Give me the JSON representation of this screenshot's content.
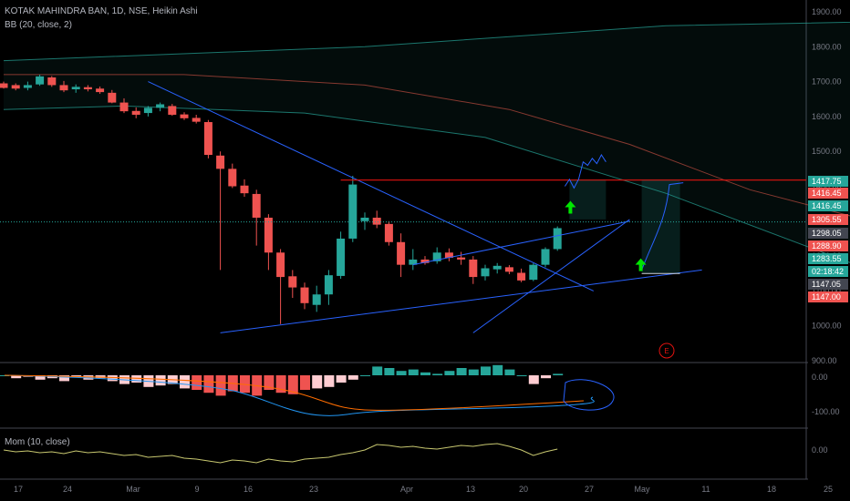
{
  "header": {
    "symbol_line": "KOTAK MAHINDRA BAN, 1D, NSE, Heikin Ashi",
    "bb_line": "BB (20, close, 2)"
  },
  "mom_panel": {
    "label": "Mom (10, close)"
  },
  "colors": {
    "background": "#000000",
    "up": "#26a69a",
    "down": "#ef5350",
    "trendline": "#2962ff",
    "resistance": "#e3130f",
    "bb_band": "#26a69a",
    "ma": "#e0584a",
    "macd_line": "#2196f3",
    "signal_line": "#ff6d00",
    "momentum": "#c8c870",
    "signal_arrow": "#00e600"
  },
  "chart_data": {
    "type": "candlestick",
    "ylim": [
      900,
      1900
    ],
    "y_ticks": [
      "1900.00",
      "1800.00",
      "1700.00",
      "1600.00",
      "1500.00",
      "1400.00",
      "1300.00",
      "1200.00",
      "1100.00",
      "1000.00",
      "900.00"
    ],
    "x_ticks": [
      "17",
      "24",
      "Mar",
      "9",
      "16",
      "23",
      "Apr",
      "13",
      "20",
      "27",
      "May",
      "11",
      "18",
      "25"
    ],
    "price_labels": [
      {
        "text": "1417.75",
        "color": "#26a69a"
      },
      {
        "text": "1416.45",
        "color": "#ef5350"
      },
      {
        "text": "1416.45",
        "color": "#26a69a"
      },
      {
        "text": "1305.55",
        "color": "#ef5350"
      },
      {
        "text": "1298.05",
        "color": "#434651"
      },
      {
        "text": "1288.90",
        "color": "#ef5350"
      },
      {
        "text": "1283.55",
        "color": "#26a69a"
      },
      {
        "text": "02:18:42",
        "color": "#26a69a"
      },
      {
        "text": "1147.05",
        "color": "#434651"
      },
      {
        "text": "1147.00",
        "color": "#ef5350"
      }
    ],
    "candles": [
      [
        1695,
        1700,
        1680,
        1682
      ],
      [
        1690,
        1695,
        1675,
        1680
      ],
      [
        1682,
        1700,
        1675,
        1690
      ],
      [
        1692,
        1720,
        1688,
        1715
      ],
      [
        1712,
        1716,
        1685,
        1690
      ],
      [
        1690,
        1702,
        1670,
        1675
      ],
      [
        1678,
        1692,
        1668,
        1685
      ],
      [
        1684,
        1690,
        1672,
        1678
      ],
      [
        1680,
        1686,
        1665,
        1670
      ],
      [
        1668,
        1676,
        1638,
        1640
      ],
      [
        1640,
        1652,
        1610,
        1615
      ],
      [
        1616,
        1626,
        1595,
        1605
      ],
      [
        1610,
        1630,
        1600,
        1625
      ],
      [
        1625,
        1640,
        1615,
        1635
      ],
      [
        1630,
        1636,
        1602,
        1605
      ],
      [
        1606,
        1612,
        1590,
        1595
      ],
      [
        1596,
        1605,
        1580,
        1585
      ],
      [
        1584,
        1590,
        1480,
        1490
      ],
      [
        1488,
        1500,
        1160,
        1450
      ],
      [
        1450,
        1465,
        1395,
        1400
      ],
      [
        1402,
        1420,
        1370,
        1380
      ],
      [
        1378,
        1390,
        1230,
        1310
      ],
      [
        1310,
        1320,
        1160,
        1210
      ],
      [
        1210,
        1220,
        1005,
        1140
      ],
      [
        1142,
        1160,
        1080,
        1110
      ],
      [
        1110,
        1124,
        1048,
        1065
      ],
      [
        1060,
        1115,
        1040,
        1090
      ],
      [
        1090,
        1160,
        1060,
        1145
      ],
      [
        1143,
        1270,
        1135,
        1250
      ],
      [
        1250,
        1430,
        1240,
        1405
      ],
      [
        1300,
        1325,
        1275,
        1310
      ],
      [
        1310,
        1330,
        1280,
        1290
      ],
      [
        1292,
        1300,
        1230,
        1240
      ],
      [
        1240,
        1265,
        1140,
        1175
      ],
      [
        1175,
        1220,
        1160,
        1190
      ],
      [
        1190,
        1200,
        1175,
        1180
      ],
      [
        1185,
        1225,
        1178,
        1210
      ],
      [
        1210,
        1222,
        1185,
        1195
      ],
      [
        1196,
        1212,
        1175,
        1190
      ],
      [
        1190,
        1200,
        1120,
        1140
      ],
      [
        1142,
        1175,
        1130,
        1165
      ],
      [
        1162,
        1180,
        1150,
        1172
      ],
      [
        1168,
        1174,
        1148,
        1155
      ],
      [
        1152,
        1164,
        1125,
        1130
      ],
      [
        1132,
        1180,
        1128,
        1175
      ],
      [
        1175,
        1225,
        1168,
        1220
      ],
      [
        1220,
        1285,
        1215,
        1280
      ]
    ],
    "bb_upper": [
      [
        0,
        1760
      ],
      [
        30,
        1800
      ],
      [
        55,
        1860
      ],
      [
        85,
        1880
      ],
      [
        100,
        1840
      ],
      [
        115,
        1770
      ],
      [
        125,
        1680
      ],
      [
        140,
        1580
      ],
      [
        162,
        1545
      ],
      [
        175,
        1535
      ],
      [
        220,
        1532
      ]
    ],
    "bb_lower": [
      [
        0,
        1620
      ],
      [
        10,
        1630
      ],
      [
        25,
        1610
      ],
      [
        40,
        1540
      ],
      [
        55,
        1380
      ],
      [
        75,
        1120
      ],
      [
        95,
        1050
      ],
      [
        105,
        1048
      ],
      [
        115,
        1035
      ],
      [
        125,
        1045
      ],
      [
        135,
        1075
      ],
      [
        145,
        1105
      ],
      [
        160,
        1140
      ],
      [
        175,
        1150
      ],
      [
        200,
        1160
      ],
      [
        220,
        1165
      ]
    ],
    "bb_basis": [
      [
        0,
        1720
      ],
      [
        15,
        1720
      ],
      [
        30,
        1690
      ],
      [
        42,
        1620
      ],
      [
        52,
        1520
      ],
      [
        62,
        1390
      ],
      [
        72,
        1300
      ],
      [
        85,
        1290
      ],
      [
        95,
        1280
      ],
      [
        110,
        1250
      ],
      [
        120,
        1230
      ],
      [
        135,
        1225
      ],
      [
        150,
        1225
      ],
      [
        170,
        1230
      ],
      [
        195,
        1240
      ]
    ],
    "resistance_level": 1417.75,
    "projection_path": [
      [
        -1,
        1400
      ],
      [
        0,
        1420
      ],
      [
        1,
        1395
      ],
      [
        2,
        1420
      ],
      [
        3,
        1470
      ],
      [
        4,
        1460
      ],
      [
        5,
        1480
      ],
      [
        6,
        1465
      ],
      [
        7,
        1490
      ],
      [
        8,
        1470
      ]
    ],
    "mom_values": [
      0,
      -2,
      -1,
      -3,
      -2,
      -4,
      -1,
      -3,
      -2,
      -4,
      -6,
      -5,
      -8,
      -7,
      -6,
      -9,
      -10,
      -12,
      -14,
      -11,
      -12,
      -14,
      -10,
      -12,
      -13,
      -10,
      -9,
      -8,
      -5,
      -3,
      0,
      6,
      5,
      3,
      4,
      2,
      1,
      3,
      5,
      4,
      6,
      7,
      4,
      0,
      -6,
      -2,
      1,
      2,
      3,
      4,
      6,
      7,
      5,
      3,
      2,
      1,
      4,
      6,
      7,
      8
    ]
  }
}
